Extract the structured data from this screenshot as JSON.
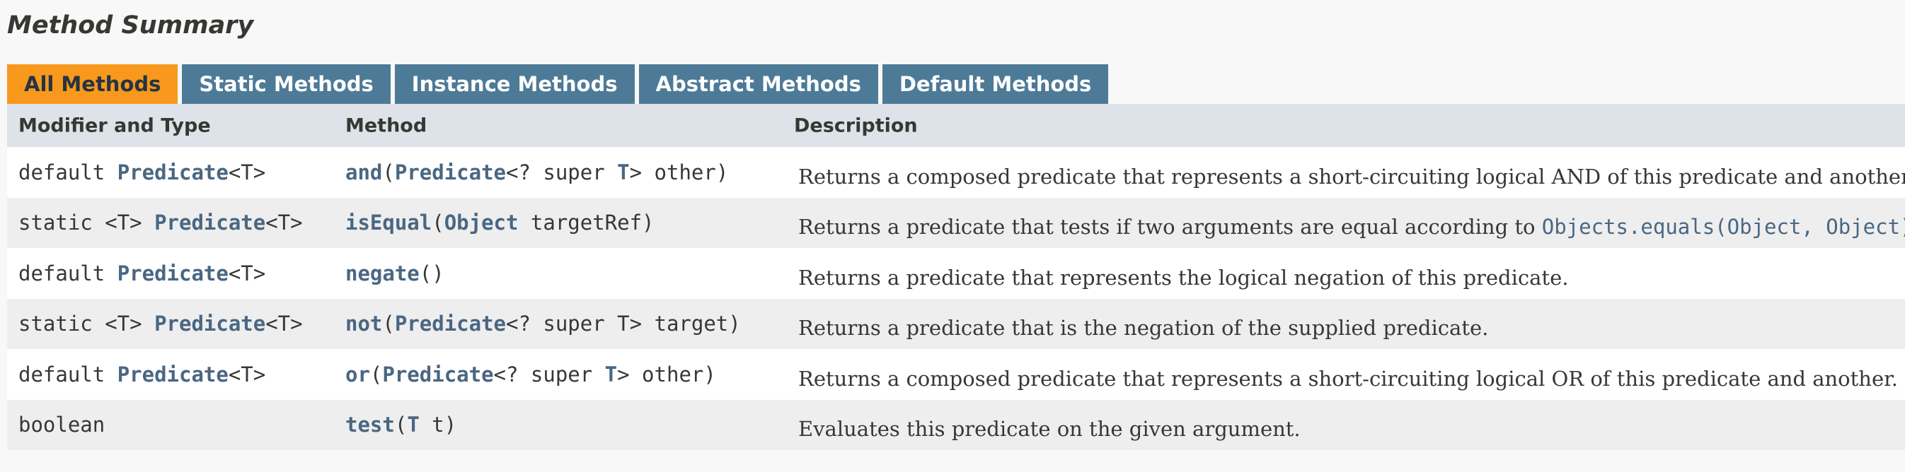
{
  "title": "Method Summary",
  "tabs": [
    {
      "label": "All Methods",
      "active": true
    },
    {
      "label": "Static Methods",
      "active": false
    },
    {
      "label": "Instance Methods",
      "active": false
    },
    {
      "label": "Abstract Methods",
      "active": false
    },
    {
      "label": "Default Methods",
      "active": false
    }
  ],
  "columns": {
    "modifier": "Modifier and Type",
    "method": "Method",
    "description": "Description"
  },
  "rows": [
    {
      "modifier": {
        "prefix": "default ",
        "type": "Predicate",
        "suffix": "<T>"
      },
      "method": {
        "name": "and",
        "p1": "(",
        "ptype": "Predicate",
        "p2": "<? super ",
        "tp": "T",
        "p3": "> other)"
      },
      "description": {
        "text": "Returns a composed predicate that represents a short-circuiting logical AND of this predicate and another.",
        "link": "",
        "after": ""
      }
    },
    {
      "modifier": {
        "prefix": "static <T> ",
        "type": "Predicate",
        "suffix": "<T>"
      },
      "method": {
        "name": "isEqual",
        "p1": "(",
        "ptype": "Object",
        "p2": " targetRef)",
        "tp": "",
        "p3": ""
      },
      "description": {
        "text": "Returns a predicate that tests if two arguments are equal according to ",
        "link": "Objects.equals(Object, Object)",
        "after": "."
      }
    },
    {
      "modifier": {
        "prefix": "default ",
        "type": "Predicate",
        "suffix": "<T>"
      },
      "method": {
        "name": "negate",
        "p1": "()",
        "ptype": "",
        "p2": "",
        "tp": "",
        "p3": ""
      },
      "description": {
        "text": "Returns a predicate that represents the logical negation of this predicate.",
        "link": "",
        "after": ""
      }
    },
    {
      "modifier": {
        "prefix": "static <T> ",
        "type": "Predicate",
        "suffix": "<T>"
      },
      "method": {
        "name": "not",
        "p1": "(",
        "ptype": "Predicate",
        "p2": "<? super T> target)",
        "tp": "",
        "p3": ""
      },
      "description": {
        "text": "Returns a predicate that is the negation of the supplied predicate.",
        "link": "",
        "after": ""
      }
    },
    {
      "modifier": {
        "prefix": "default ",
        "type": "Predicate",
        "suffix": "<T>"
      },
      "method": {
        "name": "or",
        "p1": "(",
        "ptype": "Predicate",
        "p2": "<? super ",
        "tp": "T",
        "p3": "> other)"
      },
      "description": {
        "text": "Returns a composed predicate that represents a short-circuiting logical OR of this predicate and another.",
        "link": "",
        "after": ""
      }
    },
    {
      "modifier": {
        "prefix": "boolean",
        "type": "",
        "suffix": ""
      },
      "method": {
        "name": "test",
        "p1": "(",
        "ptype": "T",
        "p2": " t)",
        "tp": "",
        "p3": ""
      },
      "description": {
        "text": "Evaluates this predicate on the given argument.",
        "link": "",
        "after": ""
      }
    }
  ],
  "colors": {
    "tab_active": "#f8981d",
    "tab_inactive": "#4d7a97",
    "header_bg": "#dee3e9",
    "link": "#4a6782",
    "text": "#353833"
  }
}
